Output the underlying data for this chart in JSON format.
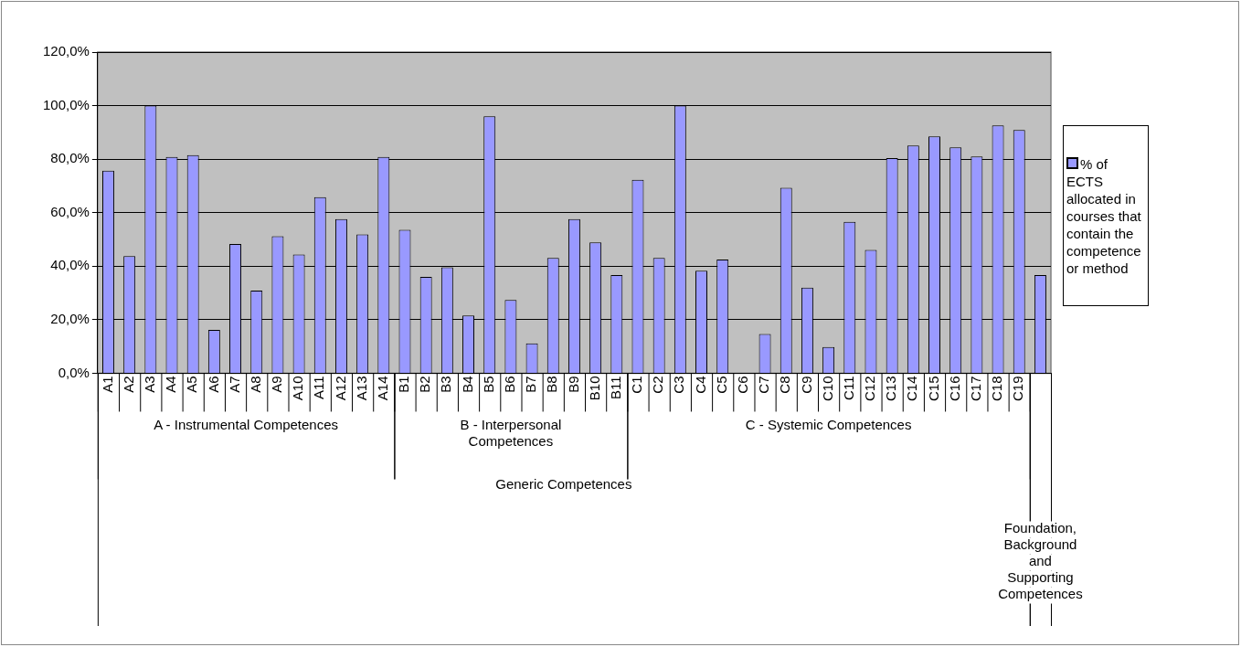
{
  "chart_data": {
    "type": "bar",
    "categories": [
      "A1",
      "A2",
      "A3",
      "A4",
      "A5",
      "A6",
      "A7",
      "A8",
      "A9",
      "A10",
      "A11",
      "A12",
      "A13",
      "A14",
      "B1",
      "B2",
      "B3",
      "B4",
      "B5",
      "B6",
      "B7",
      "B8",
      "B9",
      "B10",
      "B11",
      "C1",
      "C2",
      "C3",
      "C4",
      "C5",
      "C6",
      "C7",
      "C8",
      "C9",
      "C10",
      "C11",
      "C12",
      "C13",
      "C14",
      "C15",
      "C16",
      "C17",
      "C18",
      "C19",
      null
    ],
    "series": [
      {
        "name": "% of ECTS allocated in courses that contain the competence or method",
        "color": "#9999ff",
        "values": [
          75.7,
          43.8,
          100,
          80.8,
          81.5,
          16.2,
          48.3,
          30.9,
          51.2,
          44.4,
          65.8,
          57.6,
          51.9,
          80.8,
          53.6,
          36.0,
          39.6,
          21.6,
          96.0,
          27.4,
          11.2,
          43.1,
          57.6,
          48.9,
          36.7,
          72.3,
          43.1,
          100,
          38.3,
          42.5,
          0,
          14.7,
          69.3,
          32.0,
          9.8,
          56.6,
          46.1,
          80.4,
          85.1,
          88.5,
          84.4,
          81.0,
          92.6,
          90.9,
          36.7
        ]
      }
    ],
    "ylim": [
      0,
      120
    ],
    "yticks": [
      {
        "value": 0,
        "label": "0,0%"
      },
      {
        "value": 20,
        "label": "20,0%"
      },
      {
        "value": 40,
        "label": "40,0%"
      },
      {
        "value": 60,
        "label": "60,0%"
      },
      {
        "value": 80,
        "label": "80,0%"
      },
      {
        "value": 100,
        "label": "100,0%"
      },
      {
        "value": 120,
        "label": "120,0%"
      }
    ],
    "grid": "y",
    "legend": "right",
    "annotations": [
      "A - Instrumental Competences",
      "B - Interpersonal Competences",
      "C - Systemic Competences",
      "Generic Competences",
      "Foundation, Background and Supporting Competences"
    ]
  }
}
